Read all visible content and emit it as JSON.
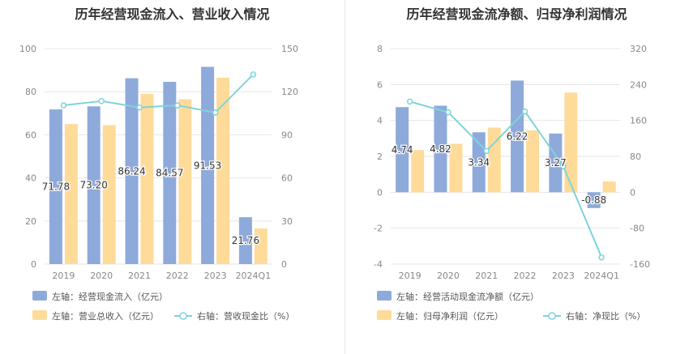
{
  "charts": [
    {
      "title": "历年经营现金流入、营业收入情况",
      "legend": {
        "bar1": "左轴：经营现金流入（亿元）",
        "bar2": "左轴：营业总收入（亿元）",
        "line": "右轴：营收现金比（%）"
      },
      "colors": {
        "bar1": "#8eaadb",
        "bar2": "#ffdb9a",
        "line": "#7fd3dc"
      },
      "left_ticks": [
        "100",
        "80",
        "60",
        "40",
        "20",
        "0"
      ],
      "right_ticks": [
        "150",
        "120",
        "90",
        "60",
        "30",
        "0"
      ]
    },
    {
      "title": "历年经营现金流净额、归母净利润情况",
      "legend": {
        "bar1": "左轴：经营活动现金流净额（亿元）",
        "bar2": "左轴：归母净利润（亿元）",
        "line": "右轴：净现比（%）"
      },
      "colors": {
        "bar1": "#8eaadb",
        "bar2": "#ffdb9a",
        "line": "#7fd3dc"
      },
      "left_ticks": [
        "8",
        "6",
        "4",
        "2",
        "0",
        "-2",
        "-4"
      ],
      "right_ticks": [
        "320",
        "240",
        "160",
        "80",
        "0",
        "-80",
        "-160"
      ]
    }
  ],
  "chart_data": [
    {
      "type": "bar",
      "categories": [
        "2019",
        "2020",
        "2021",
        "2022",
        "2023",
        "2024Q1"
      ],
      "series": [
        {
          "name": "经营现金流入（亿元）",
          "axis": "left",
          "values": [
            71.78,
            73.2,
            86.24,
            84.57,
            91.53,
            21.76
          ],
          "labels": [
            "71.78",
            "73.20",
            "86.24",
            "84.57",
            "91.53",
            "21.76"
          ]
        },
        {
          "name": "营业总收入（亿元）",
          "axis": "left",
          "values": [
            65,
            64.5,
            79,
            76.5,
            86.5,
            16.5
          ]
        },
        {
          "name": "营收现金比（%）",
          "axis": "right",
          "kind": "line",
          "values": [
            110.5,
            113.5,
            109,
            110.5,
            105.5,
            132
          ]
        }
      ],
      "ylim_left": [
        0,
        100
      ],
      "ylim_right": [
        0,
        150
      ]
    },
    {
      "type": "bar",
      "categories": [
        "2019",
        "2020",
        "2021",
        "2022",
        "2023",
        "2024Q1"
      ],
      "series": [
        {
          "name": "经营活动现金流净额（亿元）",
          "axis": "left",
          "values": [
            4.74,
            4.82,
            3.34,
            6.22,
            3.27,
            -0.88
          ],
          "labels": [
            "4.74",
            "4.82",
            "3.34",
            "6.22",
            "3.27",
            "-0.88"
          ]
        },
        {
          "name": "归母净利润（亿元）",
          "axis": "left",
          "values": [
            2.35,
            2.7,
            3.6,
            3.45,
            5.55,
            0.6
          ]
        },
        {
          "name": "净现比（%）",
          "axis": "right",
          "kind": "line",
          "values": [
            202,
            178,
            92,
            180,
            58,
            -145
          ]
        }
      ],
      "ylim_left": [
        -4,
        8
      ],
      "ylim_right": [
        -160,
        320
      ]
    }
  ]
}
